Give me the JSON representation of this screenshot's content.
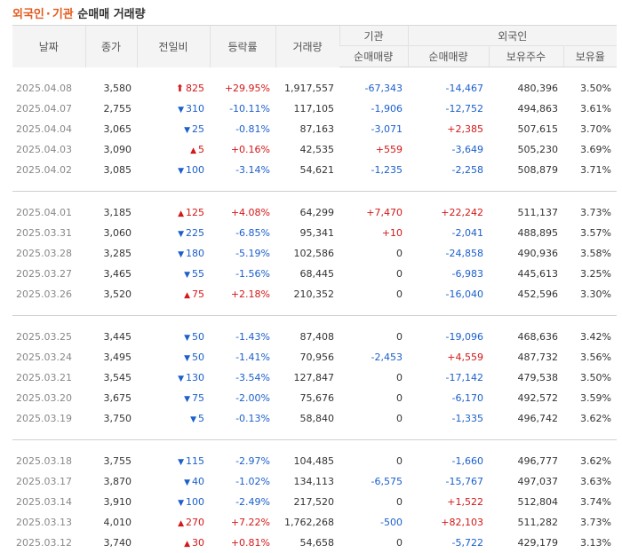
{
  "title": {
    "part1": "외국인",
    "part2": "기관",
    "part3": "순매매 거래량"
  },
  "colors": {
    "up": "#d41717",
    "down": "#1b5fcc",
    "accent": "#e35b1f"
  },
  "headers": {
    "date": "날짜",
    "close": "종가",
    "change": "전일비",
    "rate": "등락률",
    "volume": "거래량",
    "inst": "기관",
    "inst_net": "순매매량",
    "foreign": "외국인",
    "foreign_net": "순매매량",
    "foreign_shares": "보유주수",
    "foreign_ratio": "보유율"
  },
  "rows": [
    {
      "date": "2025.04.08",
      "close": "3,580",
      "change": "825",
      "dir": "upper",
      "rate": "+29.95%",
      "volume": "1,917,557",
      "inst": "-67,343",
      "foreign_net": "-14,467",
      "shares": "480,396",
      "ratio": "3.50%"
    },
    {
      "date": "2025.04.07",
      "close": "2,755",
      "change": "310",
      "dir": "down",
      "rate": "-10.11%",
      "volume": "117,105",
      "inst": "-1,906",
      "foreign_net": "-12,752",
      "shares": "494,863",
      "ratio": "3.61%"
    },
    {
      "date": "2025.04.04",
      "close": "3,065",
      "change": "25",
      "dir": "down",
      "rate": "-0.81%",
      "volume": "87,163",
      "inst": "-3,071",
      "foreign_net": "+2,385",
      "shares": "507,615",
      "ratio": "3.70%"
    },
    {
      "date": "2025.04.03",
      "close": "3,090",
      "change": "5",
      "dir": "up",
      "rate": "+0.16%",
      "volume": "42,535",
      "inst": "+559",
      "foreign_net": "-3,649",
      "shares": "505,230",
      "ratio": "3.69%"
    },
    {
      "date": "2025.04.02",
      "close": "3,085",
      "change": "100",
      "dir": "down",
      "rate": "-3.14%",
      "volume": "54,621",
      "inst": "-1,235",
      "foreign_net": "-2,258",
      "shares": "508,879",
      "ratio": "3.71%"
    },
    {
      "date": "2025.04.01",
      "close": "3,185",
      "change": "125",
      "dir": "up",
      "rate": "+4.08%",
      "volume": "64,299",
      "inst": "+7,470",
      "foreign_net": "+22,242",
      "shares": "511,137",
      "ratio": "3.73%"
    },
    {
      "date": "2025.03.31",
      "close": "3,060",
      "change": "225",
      "dir": "down",
      "rate": "-6.85%",
      "volume": "95,341",
      "inst": "+10",
      "foreign_net": "-2,041",
      "shares": "488,895",
      "ratio": "3.57%"
    },
    {
      "date": "2025.03.28",
      "close": "3,285",
      "change": "180",
      "dir": "down",
      "rate": "-5.19%",
      "volume": "102,586",
      "inst": "0",
      "foreign_net": "-24,858",
      "shares": "490,936",
      "ratio": "3.58%"
    },
    {
      "date": "2025.03.27",
      "close": "3,465",
      "change": "55",
      "dir": "down",
      "rate": "-1.56%",
      "volume": "68,445",
      "inst": "0",
      "foreign_net": "-6,983",
      "shares": "445,613",
      "ratio": "3.25%"
    },
    {
      "date": "2025.03.26",
      "close": "3,520",
      "change": "75",
      "dir": "up",
      "rate": "+2.18%",
      "volume": "210,352",
      "inst": "0",
      "foreign_net": "-16,040",
      "shares": "452,596",
      "ratio": "3.30%"
    },
    {
      "date": "2025.03.25",
      "close": "3,445",
      "change": "50",
      "dir": "down",
      "rate": "-1.43%",
      "volume": "87,408",
      "inst": "0",
      "foreign_net": "-19,096",
      "shares": "468,636",
      "ratio": "3.42%"
    },
    {
      "date": "2025.03.24",
      "close": "3,495",
      "change": "50",
      "dir": "down",
      "rate": "-1.41%",
      "volume": "70,956",
      "inst": "-2,453",
      "foreign_net": "+4,559",
      "shares": "487,732",
      "ratio": "3.56%"
    },
    {
      "date": "2025.03.21",
      "close": "3,545",
      "change": "130",
      "dir": "down",
      "rate": "-3.54%",
      "volume": "127,847",
      "inst": "0",
      "foreign_net": "-17,142",
      "shares": "479,538",
      "ratio": "3.50%"
    },
    {
      "date": "2025.03.20",
      "close": "3,675",
      "change": "75",
      "dir": "down",
      "rate": "-2.00%",
      "volume": "75,676",
      "inst": "0",
      "foreign_net": "-6,170",
      "shares": "492,572",
      "ratio": "3.59%"
    },
    {
      "date": "2025.03.19",
      "close": "3,750",
      "change": "5",
      "dir": "down",
      "rate": "-0.13%",
      "volume": "58,840",
      "inst": "0",
      "foreign_net": "-1,335",
      "shares": "496,742",
      "ratio": "3.62%"
    },
    {
      "date": "2025.03.18",
      "close": "3,755",
      "change": "115",
      "dir": "down",
      "rate": "-2.97%",
      "volume": "104,485",
      "inst": "0",
      "foreign_net": "-1,660",
      "shares": "496,777",
      "ratio": "3.62%"
    },
    {
      "date": "2025.03.17",
      "close": "3,870",
      "change": "40",
      "dir": "down",
      "rate": "-1.02%",
      "volume": "134,113",
      "inst": "-6,575",
      "foreign_net": "-15,767",
      "shares": "497,037",
      "ratio": "3.63%"
    },
    {
      "date": "2025.03.14",
      "close": "3,910",
      "change": "100",
      "dir": "down",
      "rate": "-2.49%",
      "volume": "217,520",
      "inst": "0",
      "foreign_net": "+1,522",
      "shares": "512,804",
      "ratio": "3.74%"
    },
    {
      "date": "2025.03.13",
      "close": "4,010",
      "change": "270",
      "dir": "up",
      "rate": "+7.22%",
      "volume": "1,762,268",
      "inst": "-500",
      "foreign_net": "+82,103",
      "shares": "511,282",
      "ratio": "3.73%"
    },
    {
      "date": "2025.03.12",
      "close": "3,740",
      "change": "30",
      "dir": "up",
      "rate": "+0.81%",
      "volume": "54,658",
      "inst": "0",
      "foreign_net": "-5,722",
      "shares": "429,179",
      "ratio": "3.13%"
    }
  ]
}
